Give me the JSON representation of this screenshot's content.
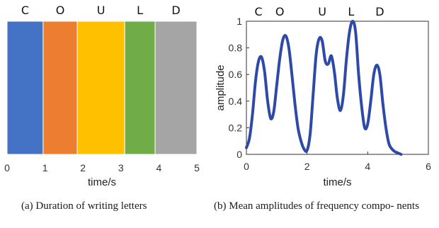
{
  "chart_data": [
    {
      "type": "bar",
      "subtype": "stacked-horizontal-segments",
      "title": "",
      "xlabel": "time/s",
      "ylabel": "",
      "xlim": [
        0,
        5
      ],
      "xticks": [
        "0",
        "1",
        "2",
        "3",
        "4",
        "5"
      ],
      "segments": [
        {
          "letter": "C",
          "start": 0.0,
          "end": 0.95,
          "color": "#4472C4"
        },
        {
          "letter": "O",
          "start": 0.95,
          "end": 1.85,
          "color": "#ED7D31"
        },
        {
          "letter": "U",
          "start": 1.85,
          "end": 3.1,
          "color": "#FFC000"
        },
        {
          "letter": "L",
          "start": 3.1,
          "end": 3.9,
          "color": "#70AD47"
        },
        {
          "letter": "D",
          "start": 3.9,
          "end": 5.0,
          "color": "#A5A5A5"
        }
      ],
      "caption": "(a)  Duration of writing letters"
    },
    {
      "type": "line",
      "title": "",
      "xlabel": "time/s",
      "ylabel": "amplitude",
      "xlim": [
        0,
        6
      ],
      "ylim": [
        0,
        1
      ],
      "xticks": [
        "0",
        "2",
        "4",
        "6"
      ],
      "yticks": [
        "0",
        "0.2",
        "0.4",
        "0.6",
        "0.8",
        "1"
      ],
      "letters": [
        {
          "letter": "C",
          "x": 0.4
        },
        {
          "letter": "O",
          "x": 1.1
        },
        {
          "letter": "U",
          "x": 2.5
        },
        {
          "letter": "L",
          "x": 3.45
        },
        {
          "letter": "D",
          "x": 4.4
        }
      ],
      "line_color": "#2E4AA8",
      "series": [
        {
          "x": [
            0.0,
            0.1,
            0.2,
            0.3,
            0.4,
            0.5,
            0.6,
            0.7,
            0.8,
            0.9,
            1.0,
            1.1,
            1.2,
            1.3,
            1.4,
            1.5,
            1.6,
            1.7,
            1.8,
            1.9,
            2.0,
            2.1,
            2.2,
            2.3,
            2.4,
            2.5,
            2.6,
            2.7,
            2.8,
            2.9,
            3.0,
            3.1,
            3.2,
            3.3,
            3.4,
            3.5,
            3.6,
            3.7,
            3.8,
            3.9,
            4.0,
            4.1,
            4.2,
            4.3,
            4.4,
            4.5,
            4.6,
            4.7,
            4.8,
            4.9,
            5.0,
            5.1
          ],
          "y": [
            0.05,
            0.12,
            0.3,
            0.55,
            0.7,
            0.73,
            0.62,
            0.4,
            0.27,
            0.32,
            0.52,
            0.72,
            0.86,
            0.89,
            0.8,
            0.6,
            0.38,
            0.2,
            0.1,
            0.04,
            0.03,
            0.15,
            0.45,
            0.75,
            0.87,
            0.85,
            0.7,
            0.68,
            0.74,
            0.62,
            0.42,
            0.33,
            0.45,
            0.72,
            0.92,
            1.0,
            0.92,
            0.6,
            0.36,
            0.2,
            0.23,
            0.4,
            0.6,
            0.67,
            0.6,
            0.38,
            0.2,
            0.08,
            0.04,
            0.02,
            0.01,
            0.0
          ]
        }
      ],
      "caption": "(b)  Mean amplitudes of frequency compo- nents"
    }
  ]
}
